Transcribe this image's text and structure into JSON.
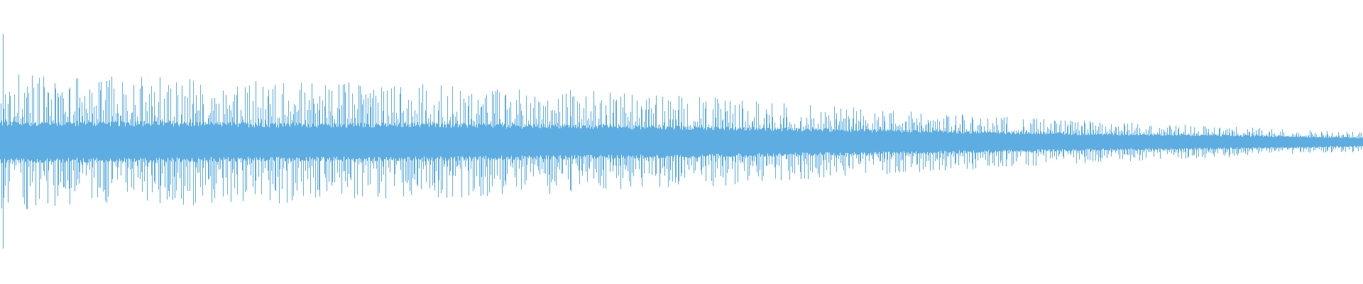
{
  "chart_data": {
    "type": "area",
    "title": "",
    "xlabel": "",
    "ylabel": "",
    "grid": false,
    "legend": "none",
    "color": "#5dade2",
    "background": "#ffffff",
    "ylim": [
      -1,
      1
    ],
    "xlim": [
      0,
      1
    ],
    "initial_transient_peak": {
      "x": 0.002,
      "max": 0.76,
      "min": -0.75
    },
    "envelope": {
      "x": [
        0.0,
        0.1,
        0.2,
        0.3,
        0.4,
        0.5,
        0.6,
        0.7,
        0.8,
        0.9,
        1.0
      ],
      "peak": [
        0.48,
        0.46,
        0.44,
        0.41,
        0.38,
        0.33,
        0.26,
        0.2,
        0.15,
        0.11,
        0.07
      ],
      "core": [
        0.13,
        0.13,
        0.12,
        0.12,
        0.11,
        0.1,
        0.085,
        0.07,
        0.055,
        0.045,
        0.03
      ]
    }
  }
}
